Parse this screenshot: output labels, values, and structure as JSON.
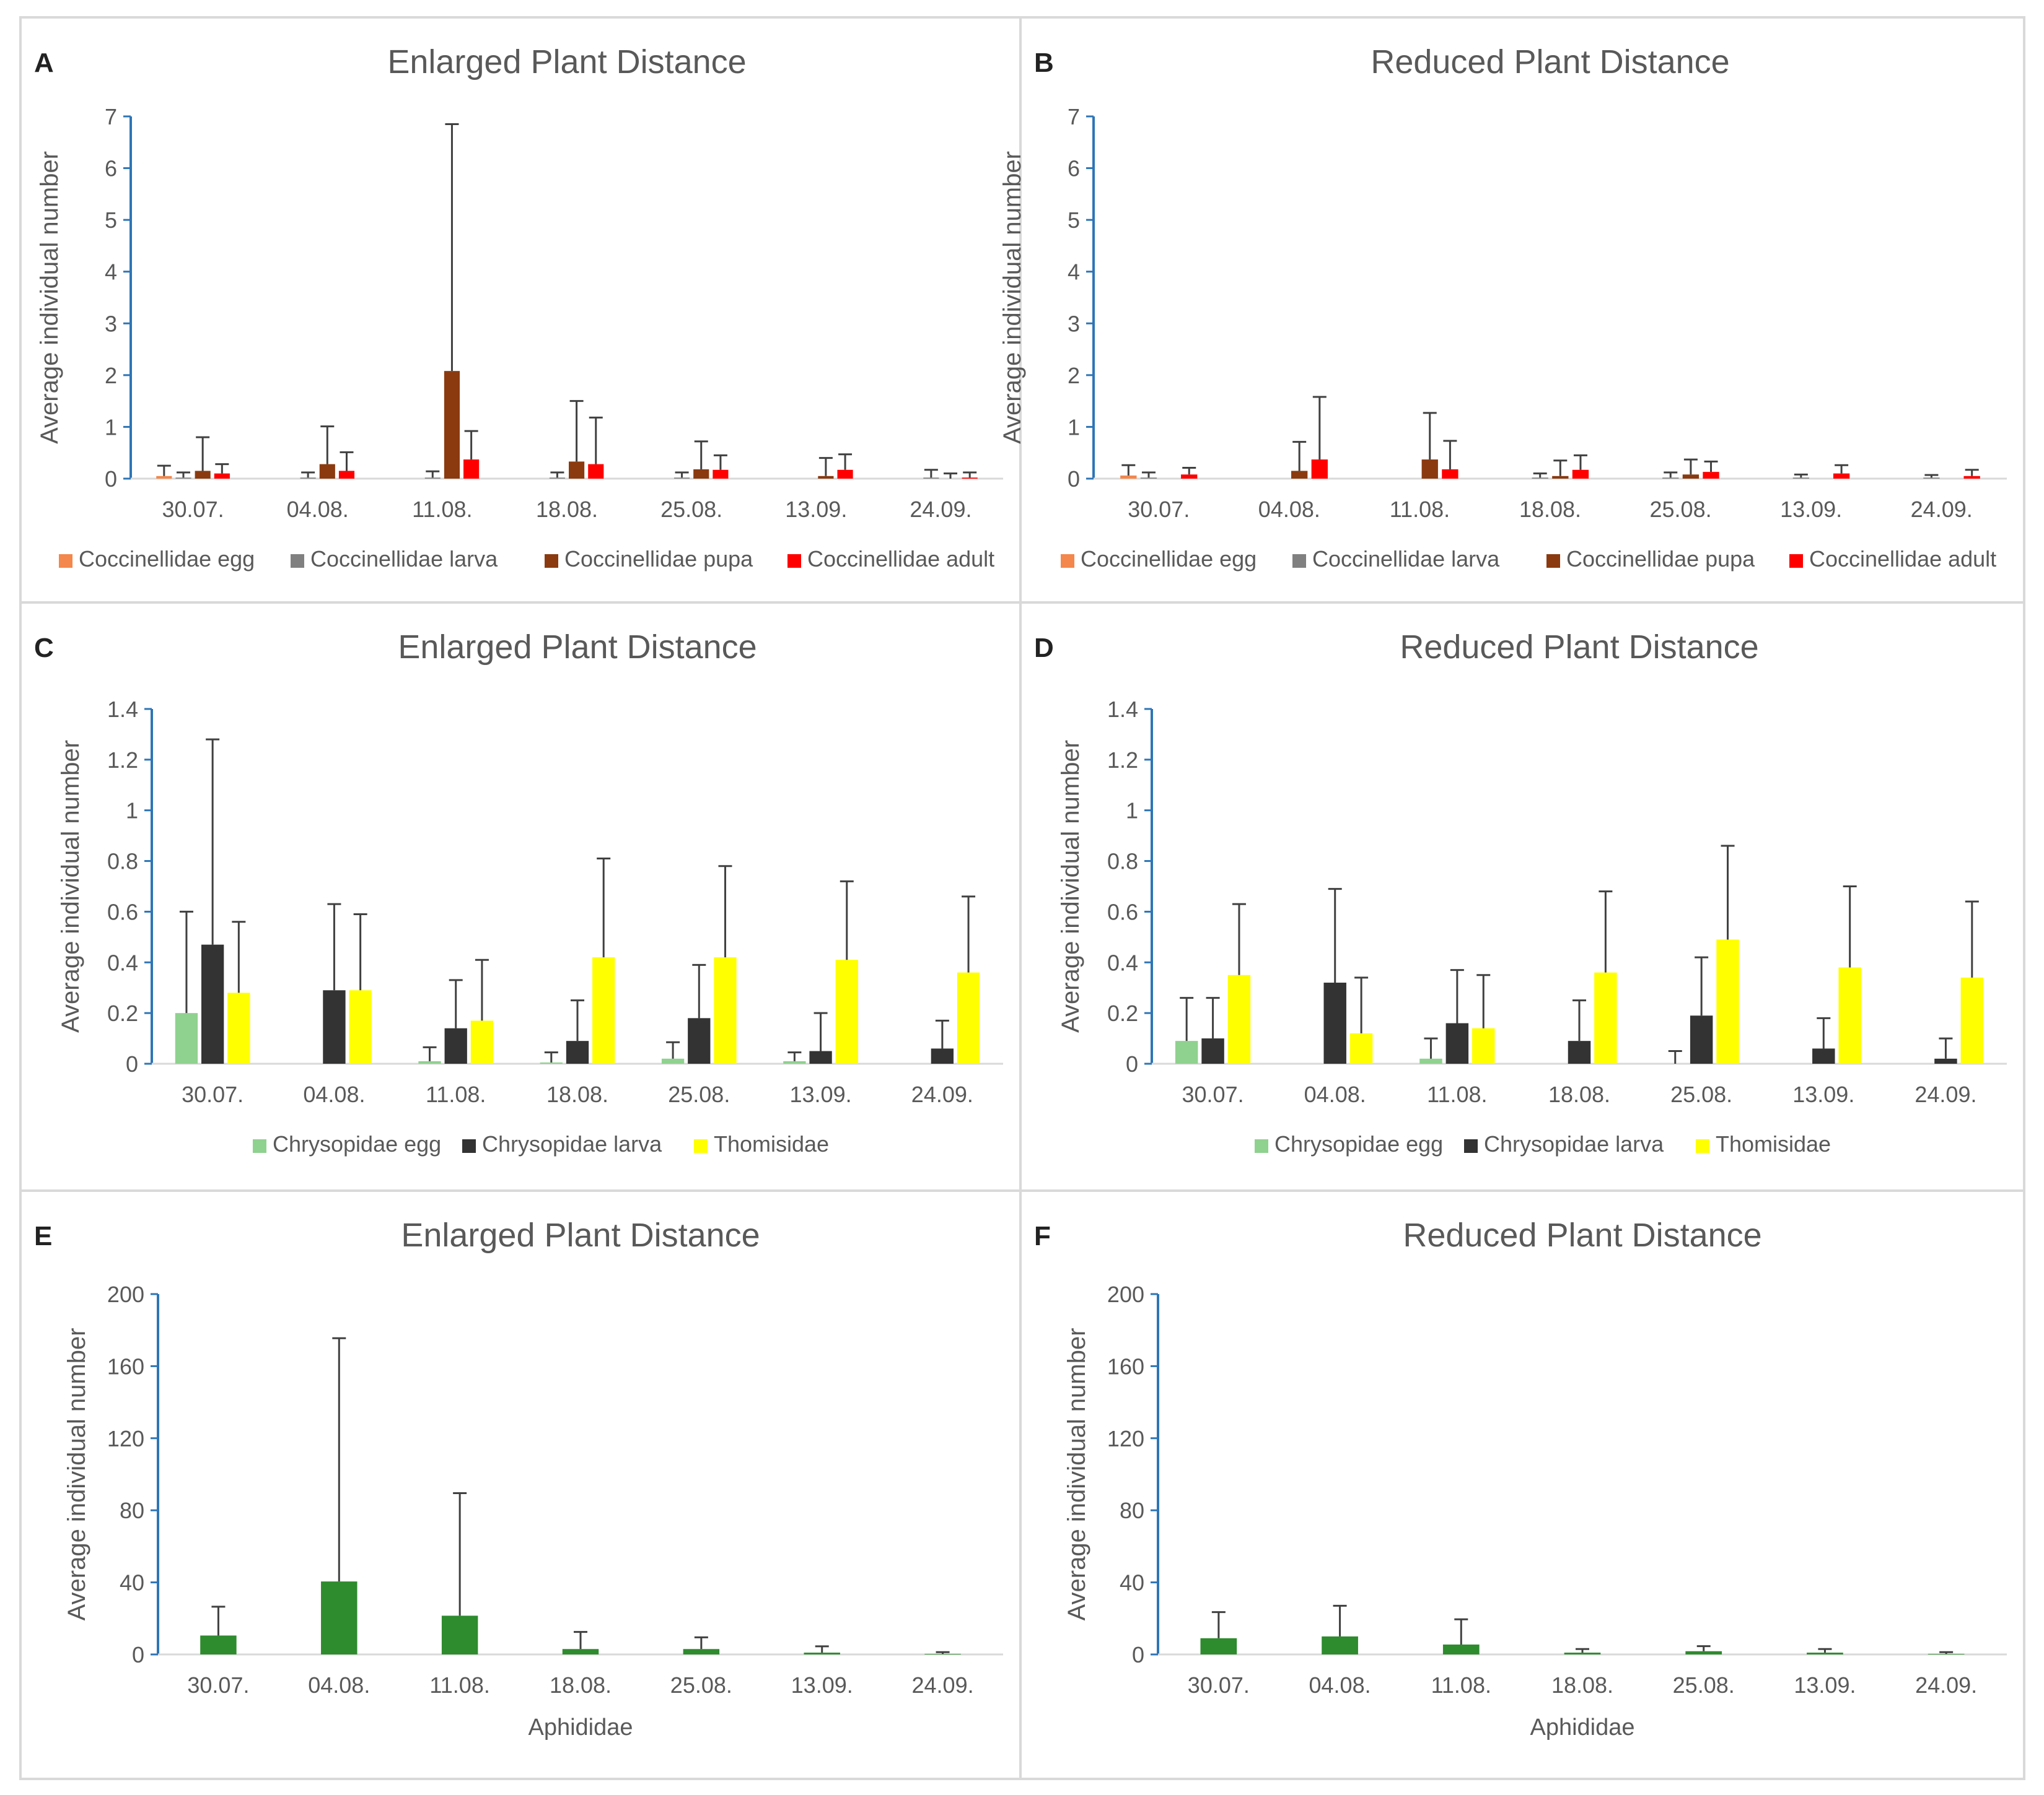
{
  "colors": {
    "axis": "#2E75B6",
    "gridline": "#D9D9D9",
    "border": "#D9D9D9",
    "text": "#595959",
    "title": "#595959",
    "errorbar": "#404040",
    "cocc_egg": "#F4874B",
    "cocc_larva": "#808080",
    "cocc_pupa": "#8B3A0F",
    "cocc_adult": "#FF0000",
    "chrys_egg": "#8FD18F",
    "chrys_larva": "#333333",
    "thomisidae": "#FFFF00",
    "aphididae": "#2E8B2E"
  },
  "chart_data": [
    {
      "panel": "A",
      "type": "bar",
      "title": "Enlarged Plant Distance",
      "xlabel": "",
      "ylabel": "Average individual number",
      "ylim": [
        0,
        7
      ],
      "yticks": [
        "0",
        "1",
        "2",
        "3",
        "4",
        "5",
        "6",
        "7"
      ],
      "categories": [
        "30.07.",
        "04.08.",
        "11.08.",
        "18.08.",
        "25.08.",
        "13.09.",
        "24.09."
      ],
      "legend_position": "bottom",
      "series": [
        {
          "name": "Coccinellidae egg",
          "color_key": "cocc_egg",
          "values": [
            0.05,
            0,
            0,
            0,
            0,
            0,
            0
          ],
          "errors": [
            0.2,
            0,
            0,
            0,
            0,
            0,
            0
          ]
        },
        {
          "name": "Coccinellidae larva",
          "color_key": "cocc_larva",
          "values": [
            0.02,
            0.02,
            0.02,
            0.02,
            0.02,
            0,
            0.02
          ],
          "errors": [
            0.1,
            0.1,
            0.12,
            0.1,
            0.1,
            0,
            0.15
          ]
        },
        {
          "name": "Coccinellidae pupa",
          "color_key": "cocc_pupa",
          "values": [
            0.15,
            0.28,
            2.08,
            0.33,
            0.18,
            0.05,
            0
          ],
          "errors": [
            0.65,
            0.73,
            4.77,
            1.17,
            0.54,
            0.35,
            0.1
          ]
        },
        {
          "name": "Coccinellidae adult",
          "color_key": "cocc_adult",
          "values": [
            0.1,
            0.15,
            0.37,
            0.28,
            0.17,
            0.17,
            0.02
          ],
          "errors": [
            0.18,
            0.36,
            0.55,
            0.9,
            0.28,
            0.3,
            0.1
          ]
        }
      ]
    },
    {
      "panel": "B",
      "type": "bar",
      "title": "Reduced Plant Distance",
      "xlabel": "",
      "ylabel": "Average individual number",
      "ylim": [
        0,
        7
      ],
      "yticks": [
        "0",
        "1",
        "2",
        "3",
        "4",
        "5",
        "6",
        "7"
      ],
      "categories": [
        "30.07.",
        "04.08.",
        "11.08.",
        "18.08.",
        "25.08.",
        "13.09.",
        "24.09."
      ],
      "legend_position": "bottom",
      "series": [
        {
          "name": "Coccinellidae egg",
          "color_key": "cocc_egg",
          "values": [
            0.06,
            0,
            0,
            0,
            0,
            0,
            0
          ],
          "errors": [
            0.2,
            0,
            0,
            0,
            0,
            0,
            0
          ]
        },
        {
          "name": "Coccinellidae larva",
          "color_key": "cocc_larva",
          "values": [
            0.02,
            0,
            0,
            0.02,
            0.02,
            0.02,
            0.02
          ],
          "errors": [
            0.1,
            0,
            0,
            0.08,
            0.1,
            0.06,
            0.05
          ]
        },
        {
          "name": "Coccinellidae pupa",
          "color_key": "cocc_pupa",
          "values": [
            0,
            0.15,
            0.37,
            0.05,
            0.08,
            0,
            0
          ],
          "errors": [
            0,
            0.56,
            0.9,
            0.3,
            0.29,
            0,
            0
          ]
        },
        {
          "name": "Coccinellidae adult",
          "color_key": "cocc_adult",
          "values": [
            0.08,
            0.37,
            0.18,
            0.17,
            0.13,
            0.1,
            0.05
          ],
          "errors": [
            0.13,
            1.21,
            0.55,
            0.28,
            0.2,
            0.16,
            0.12
          ]
        }
      ]
    },
    {
      "panel": "C",
      "type": "bar",
      "title": "Enlarged Plant Distance",
      "xlabel": "",
      "ylabel": "Average individual number",
      "ylim": [
        0,
        1.4
      ],
      "yticks": [
        "0",
        "0.2",
        "0.4",
        "0.6",
        "0.8",
        "1",
        "1.2",
        "1.4"
      ],
      "categories": [
        "30.07.",
        "04.08.",
        "11.08.",
        "18.08.",
        "25.08.",
        "13.09.",
        "24.09."
      ],
      "legend_position": "bottom",
      "series": [
        {
          "name": "Chrysopidae egg",
          "color_key": "chrys_egg",
          "values": [
            0.2,
            0,
            0.01,
            0.005,
            0.02,
            0.01,
            0
          ],
          "errors": [
            0.4,
            0,
            0.055,
            0.04,
            0.065,
            0.035,
            0
          ]
        },
        {
          "name": "Chrysopidae larva",
          "color_key": "chrys_larva",
          "values": [
            0.47,
            0.29,
            0.14,
            0.09,
            0.18,
            0.05,
            0.06
          ],
          "errors": [
            0.81,
            0.34,
            0.19,
            0.16,
            0.21,
            0.15,
            0.11
          ]
        },
        {
          "name": "Thomisidae",
          "color_key": "thomisidae",
          "values": [
            0.28,
            0.29,
            0.17,
            0.42,
            0.42,
            0.41,
            0.36
          ],
          "errors": [
            0.28,
            0.3,
            0.24,
            0.39,
            0.36,
            0.31,
            0.3
          ]
        }
      ]
    },
    {
      "panel": "D",
      "type": "bar",
      "title": "Reduced Plant Distance",
      "xlabel": "",
      "ylabel": "Average individual number",
      "ylim": [
        0,
        1.4
      ],
      "yticks": [
        "0",
        "0.2",
        "0.4",
        "0.6",
        "0.8",
        "1",
        "1.2",
        "1.4"
      ],
      "categories": [
        "30.07.",
        "04.08.",
        "11.08.",
        "18.08.",
        "25.08.",
        "13.09.",
        "24.09."
      ],
      "legend_position": "bottom",
      "series": [
        {
          "name": "Chrysopidae egg",
          "color_key": "chrys_egg",
          "values": [
            0.09,
            0,
            0.02,
            0,
            0,
            0,
            0
          ],
          "errors": [
            0.17,
            0,
            0.08,
            0,
            0.05,
            0,
            0
          ]
        },
        {
          "name": "Chrysopidae larva",
          "color_key": "chrys_larva",
          "values": [
            0.1,
            0.32,
            0.16,
            0.09,
            0.19,
            0.06,
            0.02
          ],
          "errors": [
            0.16,
            0.37,
            0.21,
            0.16,
            0.23,
            0.12,
            0.08
          ]
        },
        {
          "name": "Thomisidae",
          "color_key": "thomisidae",
          "values": [
            0.35,
            0.12,
            0.14,
            0.36,
            0.49,
            0.38,
            0.34
          ],
          "errors": [
            0.28,
            0.22,
            0.21,
            0.32,
            0.37,
            0.32,
            0.3
          ]
        }
      ]
    },
    {
      "panel": "E",
      "type": "bar",
      "title": "Enlarged Plant Distance",
      "xlabel": "Aphididae",
      "ylabel": "Average individual number",
      "ylim": [
        0,
        200
      ],
      "yticks": [
        "0",
        "40",
        "80",
        "120",
        "160",
        "200"
      ],
      "categories": [
        "30.07.",
        "04.08.",
        "11.08.",
        "18.08.",
        "25.08.",
        "13.09.",
        "24.09."
      ],
      "legend_position": "none",
      "series": [
        {
          "name": "Aphididae",
          "color_key": "aphididae",
          "values": [
            10.5,
            40.5,
            21.5,
            3,
            3,
            1,
            0.3
          ],
          "errors": [
            16,
            135,
            68,
            9.5,
            6.5,
            3.5,
            1
          ]
        }
      ]
    },
    {
      "panel": "F",
      "type": "bar",
      "title": "Reduced Plant Distance",
      "xlabel": "Aphididae",
      "ylabel": "Average individual number",
      "ylim": [
        0,
        200
      ],
      "yticks": [
        "0",
        "40",
        "80",
        "120",
        "160",
        "200"
      ],
      "categories": [
        "30.07.",
        "04.08.",
        "11.08.",
        "18.08.",
        "25.08.",
        "13.09.",
        "24.09."
      ],
      "legend_position": "none",
      "series": [
        {
          "name": "Aphididae",
          "color_key": "aphididae",
          "values": [
            9,
            10,
            5.5,
            1,
            1.8,
            1,
            0.3
          ],
          "errors": [
            14.5,
            17,
            14,
            2,
            2.8,
            2,
            1
          ]
        }
      ]
    }
  ]
}
